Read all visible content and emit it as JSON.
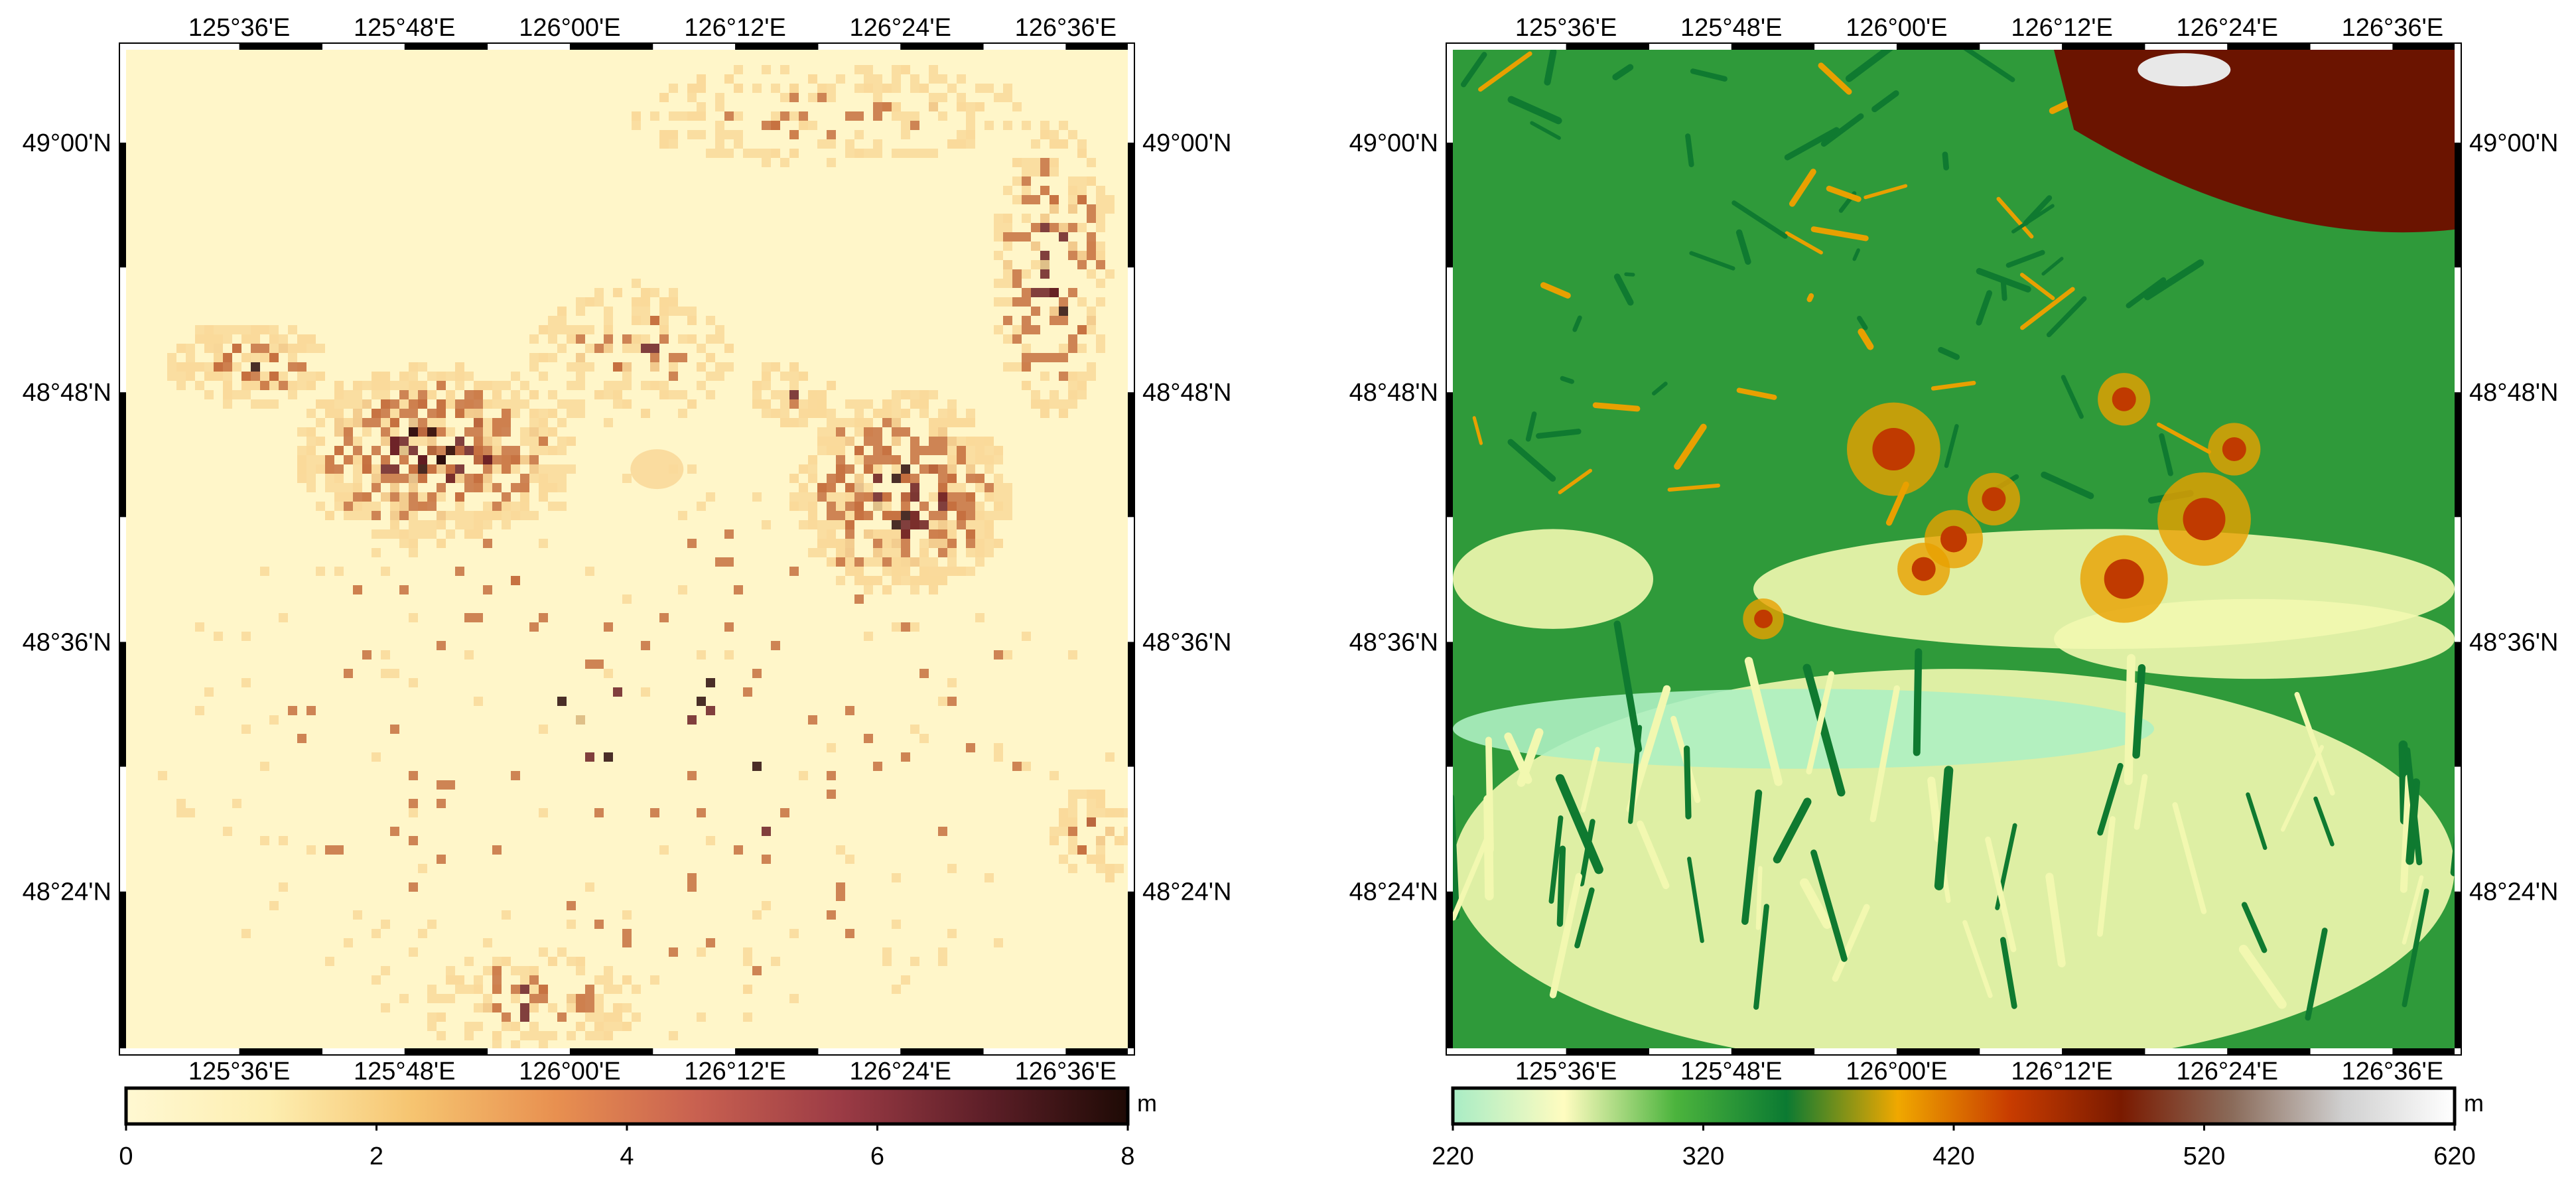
{
  "maps": [
    {
      "id": "left",
      "lon_labels": [
        "125°36'E",
        "125°48'E",
        "126°00'E",
        "126°12'E",
        "126°24'E",
        "126°36'E"
      ],
      "lat_labels": [
        "49°00'N",
        "48°48'N",
        "48°36'N",
        "48°24'N"
      ],
      "colorbar": {
        "unit": "m",
        "ticks": [
          "0",
          "2",
          "4",
          "6",
          "8"
        ],
        "colors": [
          "#fff8d2",
          "#fdeeb0",
          "#f6c470",
          "#e89050",
          "#c86050",
          "#9b3b45",
          "#5e1f28",
          "#1e0a05"
        ]
      },
      "map_colors": {
        "background": "#fff6c9",
        "light": "#f9d99a",
        "medium": "#c5703f",
        "dark": "#6b1f25",
        "darkest": "#2a0a0a"
      }
    },
    {
      "id": "right",
      "lon_labels": [
        "125°36'E",
        "125°48'E",
        "126°00'E",
        "126°12'E",
        "126°24'E",
        "126°36'E"
      ],
      "lat_labels": [
        "49°00'N",
        "48°48'N",
        "48°36'N",
        "48°24'N"
      ],
      "colorbar": {
        "unit": "m",
        "ticks": [
          "220",
          "320",
          "420",
          "520",
          "620"
        ],
        "colors": [
          "#a8ecc5",
          "#fffcc0",
          "#4cb43d",
          "#0b7a32",
          "#f0a800",
          "#c83c00",
          "#7a1a00",
          "#8a6b5a",
          "#d0d0d0",
          "#ffffff"
        ]
      },
      "map_colors": {
        "valley": "#aef0c2",
        "plain": "#f2f8b0",
        "green": "#2f9a3a",
        "dark_green": "#0f7a30",
        "orange": "#e8a000",
        "red": "#c03a00",
        "brown": "#6b1400",
        "snow": "#e8e8e8"
      }
    }
  ]
}
